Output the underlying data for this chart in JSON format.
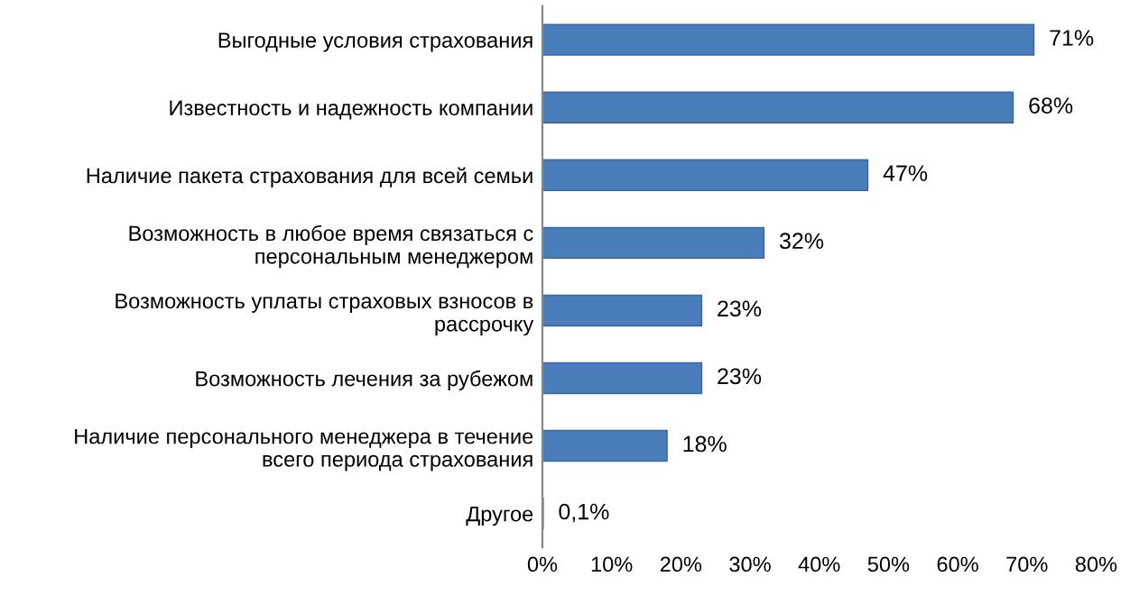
{
  "chart_data": {
    "type": "bar",
    "orientation": "horizontal",
    "categories": [
      "Выгодные условия страхования",
      "Известность и надежность компании",
      "Наличие пакета страхования для всей семьи",
      "Возможность в любое время связаться с персональным менеджером",
      "Возможность уплаты страховых взносов в рассрочку",
      "Возможность лечения за рубежом",
      "Наличие персонального менеджера в течение всего периода страхования",
      "Другое"
    ],
    "values": [
      71,
      68,
      47,
      32,
      23,
      23,
      18,
      0.1
    ],
    "value_labels": [
      "71%",
      "68%",
      "47%",
      "32%",
      "23%",
      "23%",
      "18%",
      "0,1%"
    ],
    "color": "#4a7ebb",
    "xlim": [
      0,
      80
    ],
    "xticks": [
      {
        "value": 0,
        "label": "0%"
      },
      {
        "value": 10,
        "label": "10%"
      },
      {
        "value": 20,
        "label": "20%"
      },
      {
        "value": 30,
        "label": "30%"
      },
      {
        "value": 40,
        "label": "40%"
      },
      {
        "value": 50,
        "label": "50%"
      },
      {
        "value": 60,
        "label": "60%"
      },
      {
        "value": 70,
        "label": "70%"
      },
      {
        "value": 80,
        "label": "80%"
      }
    ],
    "grid": false
  }
}
